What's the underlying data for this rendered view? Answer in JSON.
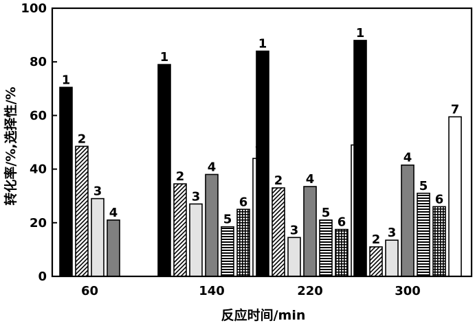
{
  "chart_data": {
    "type": "bar",
    "title": "",
    "xlabel": "反应时间/min",
    "ylabel": "转化率/%,选择性/%",
    "ylim": [
      0,
      100
    ],
    "yticks": [
      0,
      20,
      40,
      60,
      80,
      100
    ],
    "grid": false,
    "legend": "none",
    "categories": [
      "60",
      "140",
      "220",
      "300"
    ],
    "series": [
      {
        "name": "1",
        "fill": "black",
        "values": [
          70.5,
          79,
          84,
          88
        ]
      },
      {
        "name": "2",
        "fill": "diag-hatch",
        "values": [
          48.5,
          34.5,
          33,
          11
        ]
      },
      {
        "name": "3",
        "fill": "light-gray",
        "values": [
          29,
          27,
          14.5,
          13.5
        ]
      },
      {
        "name": "4",
        "fill": "gray",
        "values": [
          21,
          38,
          33.5,
          41.5
        ]
      },
      {
        "name": "5",
        "fill": "horizontal-lines",
        "values": [
          null,
          18.5,
          21,
          31
        ]
      },
      {
        "name": "6",
        "fill": "grid-hatch",
        "values": [
          null,
          25,
          17.5,
          26
        ]
      },
      {
        "name": "7",
        "fill": "white",
        "values": [
          null,
          44,
          49,
          59.5
        ]
      }
    ]
  },
  "colors": {
    "black": "#000000",
    "gray": "#808080",
    "light_gray": "#e3e3e3",
    "white": "#ffffff"
  }
}
